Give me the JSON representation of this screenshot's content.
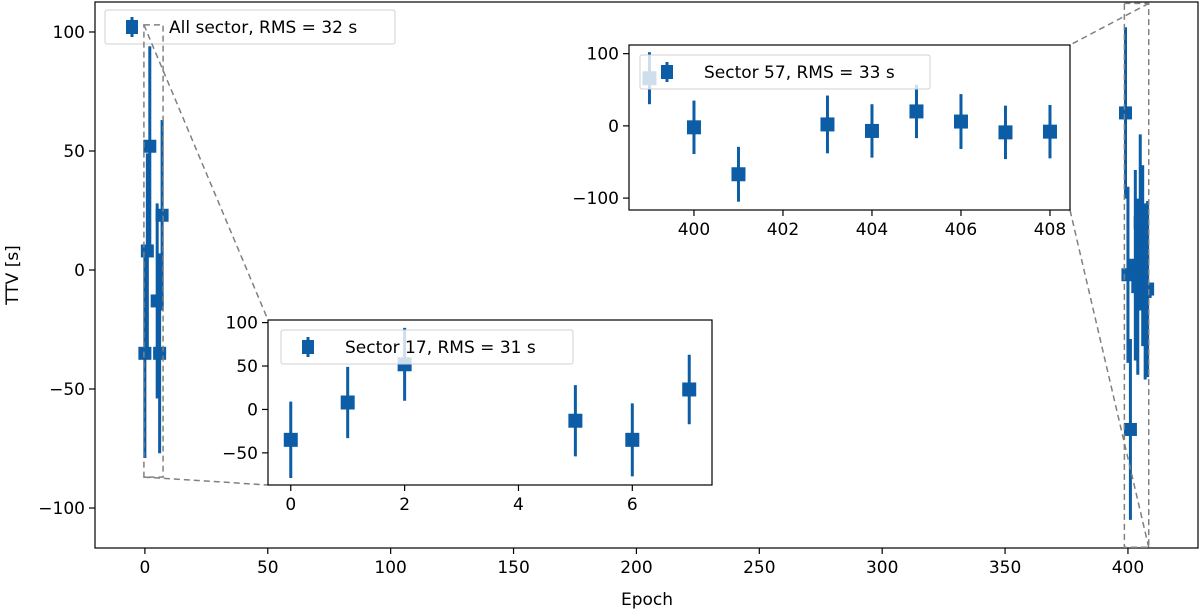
{
  "chart_data": [
    {
      "id": "main",
      "type": "scatter",
      "xlabel": "Epoch",
      "ylabel": "TTV [s]",
      "xlim": [
        -20.3,
        428.5
      ],
      "ylim": [
        -116.8,
        112.6
      ],
      "xticks": [
        0,
        50,
        100,
        150,
        200,
        250,
        300,
        350,
        400
      ],
      "yticks": [
        -100,
        -50,
        0,
        50,
        100
      ],
      "grid": false,
      "legend_placement": "upper-left",
      "series": [
        {
          "name": "All sector, RMS = 32 s",
          "x": [
            0,
            1,
            2,
            5,
            6,
            7,
            399,
            400,
            401,
            403,
            404,
            405,
            406,
            407,
            408
          ],
          "y": [
            -35,
            8,
            52,
            -13,
            -35,
            23,
            66,
            -2,
            -67,
            2,
            -7,
            20,
            6,
            -9,
            -8
          ],
          "yerr": [
            44,
            41,
            42,
            41,
            42,
            40,
            36,
            37,
            38,
            40,
            37,
            37,
            38,
            37,
            37
          ]
        }
      ]
    },
    {
      "id": "inset-sector-17",
      "type": "scatter",
      "xlim": [
        -0.4,
        7.4
      ],
      "ylim": [
        -87,
        103
      ],
      "xticks": [
        0,
        2,
        4,
        6
      ],
      "yticks": [
        -50,
        0,
        50,
        100
      ],
      "legend_placement": "upper-left",
      "series": [
        {
          "name": "Sector 17, RMS = 31 s",
          "x": [
            0,
            1,
            2,
            5,
            6,
            7
          ],
          "y": [
            -35,
            8,
            52,
            -13,
            -35,
            23
          ],
          "yerr": [
            44,
            41,
            42,
            41,
            42,
            40
          ]
        }
      ]
    },
    {
      "id": "inset-sector-57",
      "type": "scatter",
      "xlim": [
        398.54,
        408.45
      ],
      "ylim": [
        -116.5,
        112
      ],
      "xticks": [
        400,
        402,
        404,
        406,
        408
      ],
      "yticks": [
        -100,
        0,
        100
      ],
      "legend_placement": "upper-left",
      "series": [
        {
          "name": "Sector 57, RMS = 33 s",
          "x": [
            399,
            400,
            401,
            403,
            404,
            405,
            406,
            407,
            408
          ],
          "y": [
            66,
            -2,
            -67,
            2,
            -7,
            20,
            6,
            -9,
            -8
          ],
          "yerr": [
            36,
            37,
            38,
            40,
            37,
            37,
            38,
            37,
            37
          ]
        }
      ]
    }
  ],
  "colors": {
    "marker": "#0c5da5",
    "zoom_indicator": "#808080",
    "legend_border": "#d0d0d0"
  }
}
